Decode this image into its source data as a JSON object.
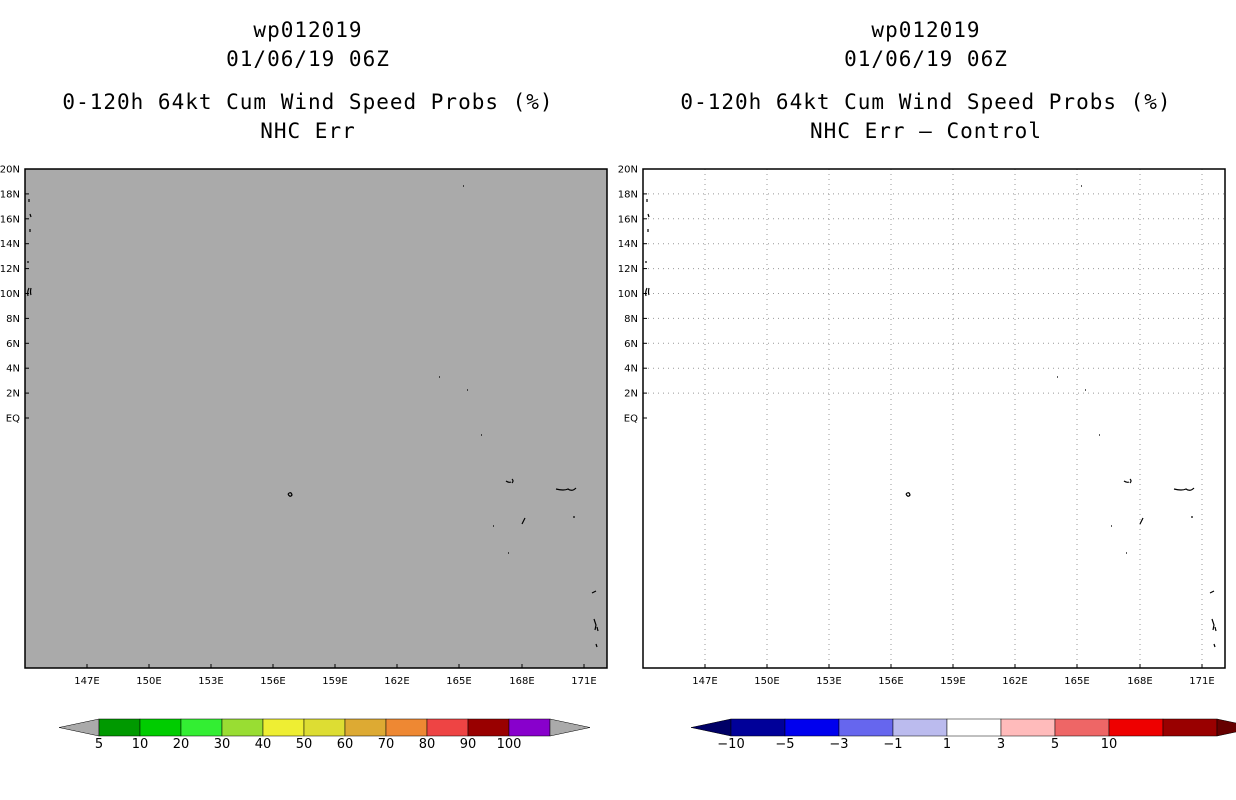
{
  "colors": {
    "land_gray": "#aaaaaa",
    "grid": "#999999",
    "frame": "#000000",
    "left_colorbar": [
      "#009900",
      "#00cc00",
      "#33ee33",
      "#99dd33",
      "#eeee33",
      "#dddd33",
      "#ddaa33",
      "#ee8833",
      "#ee4444",
      "#990000",
      "#8800cc"
    ],
    "right_colorbar": [
      "#000099",
      "#0000ee",
      "#6666ee",
      "#bbbbee",
      "#ffffff",
      "#ffbbbb",
      "#ee6666",
      "#ee0000",
      "#990000"
    ]
  },
  "left_panel": {
    "storm_id": "wp012019",
    "datetime": "01/06/19 06Z",
    "product": "0-120h 64kt Cum Wind Speed Probs (%)",
    "subtitle": "NHC Err",
    "lat_labels": [
      "20N",
      "18N",
      "16N",
      "14N",
      "12N",
      "10N",
      "8N",
      "6N",
      "4N",
      "2N",
      "EQ"
    ],
    "lon_labels": [
      "147E",
      "150E",
      "153E",
      "156E",
      "159E",
      "162E",
      "165E",
      "168E",
      "171E"
    ],
    "colorbar_labels": [
      "5",
      "10",
      "20",
      "30",
      "40",
      "50",
      "60",
      "70",
      "80",
      "90",
      "100"
    ]
  },
  "right_panel": {
    "storm_id": "wp012019",
    "datetime": "01/06/19 06Z",
    "product": "0-120h 64kt Cum Wind Speed Probs (%)",
    "subtitle": "NHC Err – Control",
    "lat_labels": [
      "20N",
      "18N",
      "16N",
      "14N",
      "12N",
      "10N",
      "8N",
      "6N",
      "4N",
      "2N",
      "EQ"
    ],
    "lon_labels": [
      "147E",
      "150E",
      "153E",
      "156E",
      "159E",
      "162E",
      "165E",
      "168E",
      "171E"
    ],
    "colorbar_labels": [
      "−10",
      "−5",
      "−3",
      "−1",
      "1",
      "3",
      "5",
      "10"
    ]
  }
}
